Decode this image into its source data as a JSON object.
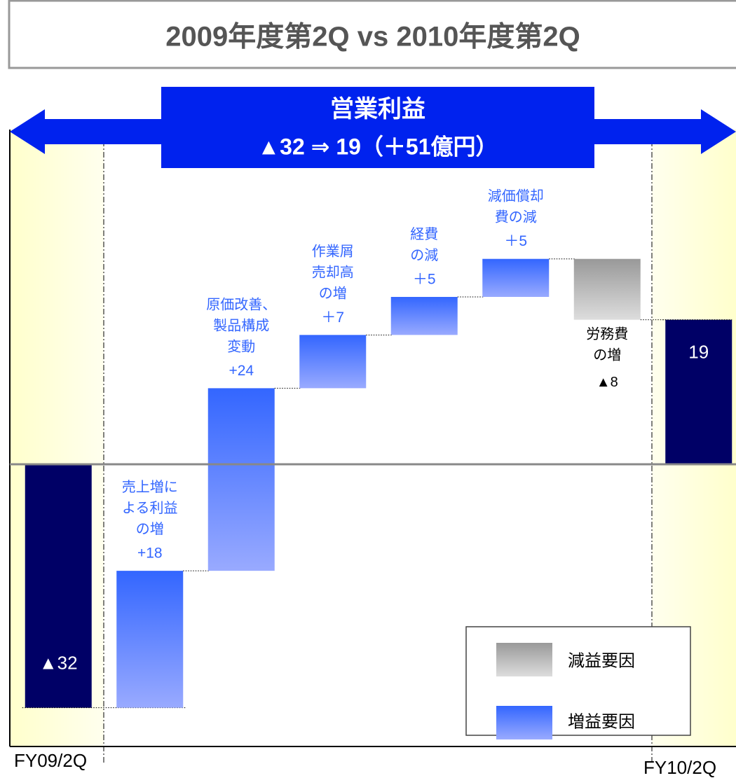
{
  "chart_data": {
    "type": "waterfall",
    "title": "2009年度第2Q vs 2010年度第2Q",
    "banner": [
      "営業利益",
      "▲32 ⇒ 19（＋51億円）"
    ],
    "categories": [
      "FY09/2Q",
      "売上増に\nよる利益\nの増",
      "原価改善、\n製品構成\n変動",
      "作業屑\n売却高\nの増",
      "経費\nの減",
      "減価償却\n費の減",
      "労務費\nの増",
      "FY10/2Q"
    ],
    "values": [
      -32,
      18,
      24,
      7,
      5,
      5,
      -8,
      19
    ],
    "value_labels": [
      "▲32",
      "+18",
      "+24",
      "＋7",
      "＋5",
      "＋5",
      "▲8",
      "19"
    ],
    "colors": {
      "total": "#000066",
      "increase": "#3366ff",
      "decrease": "#999999"
    },
    "legend": {
      "decrease": "減益要因",
      "increase": "増益要因"
    },
    "ylim": [
      -37,
      44
    ]
  }
}
